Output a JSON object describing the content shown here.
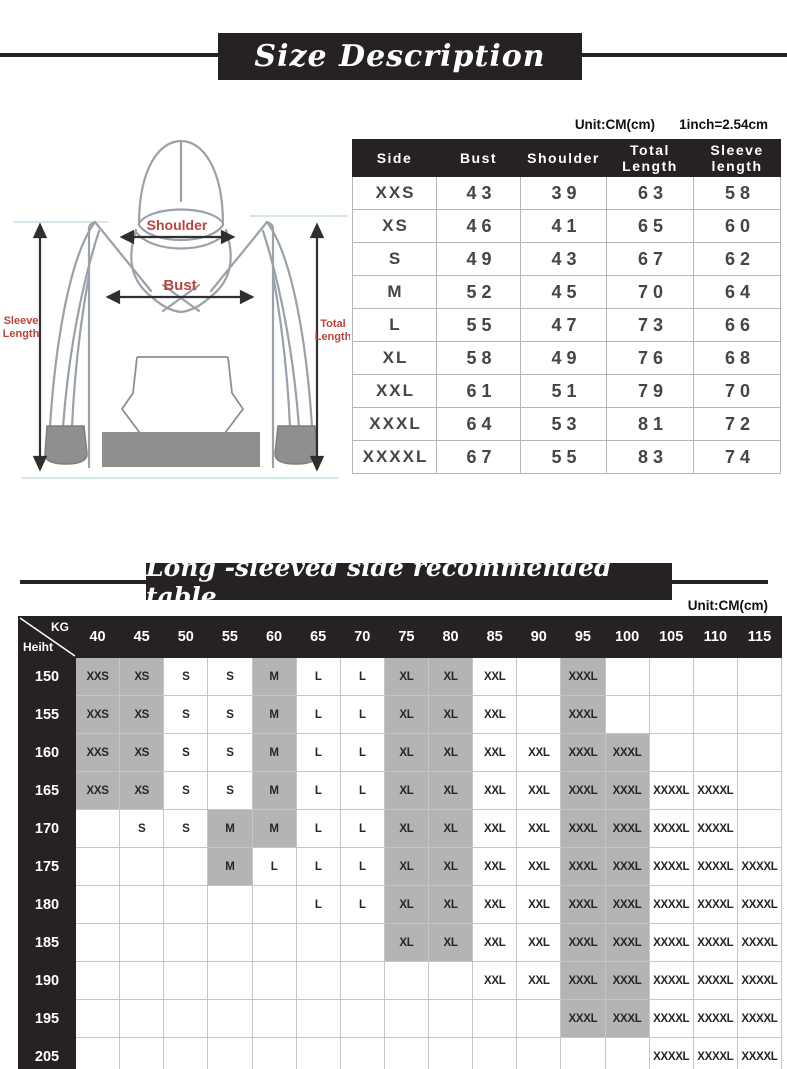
{
  "header": {
    "title": "Size Description"
  },
  "unit_note_top": {
    "unit": "Unit:CM(cm)",
    "conversion": "1inch=2.54cm"
  },
  "diagram": {
    "shoulder": "Shoulder",
    "bust": "Bust",
    "sleeve_line1": "Sleeve",
    "sleeve_line2": "Length",
    "total_line1": "Total",
    "total_line2": "Length"
  },
  "size_table": {
    "columns": [
      "Side",
      "Bust",
      "Shoulder",
      "Total\nLength",
      "Sleeve\nlength"
    ],
    "rows": [
      [
        "XXS",
        "43",
        "39",
        "63",
        "58"
      ],
      [
        "XS",
        "46",
        "41",
        "65",
        "60"
      ],
      [
        "S",
        "49",
        "43",
        "67",
        "62"
      ],
      [
        "M",
        "52",
        "45",
        "70",
        "64"
      ],
      [
        "L",
        "55",
        "47",
        "73",
        "66"
      ],
      [
        "XL",
        "58",
        "49",
        "76",
        "68"
      ],
      [
        "XXL",
        "61",
        "51",
        "79",
        "70"
      ],
      [
        "XXXL",
        "64",
        "53",
        "81",
        "72"
      ],
      [
        "XXXXL",
        "67",
        "55",
        "83",
        "74"
      ]
    ]
  },
  "recommend_header": {
    "title": "Long -sleeved side recommended table"
  },
  "unit_note_bottom": "Unit:CM(cm)",
  "recommend_table": {
    "corner_top": "KG",
    "corner_bottom": "Heiht",
    "weights": [
      "40",
      "45",
      "50",
      "55",
      "60",
      "65",
      "70",
      "75",
      "80",
      "85",
      "90",
      "95",
      "100",
      "105",
      "110",
      "115"
    ],
    "rows": [
      {
        "height": "150",
        "cells": [
          {
            "s": "XXS",
            "g": 1
          },
          {
            "s": "XS",
            "g": 1
          },
          {
            "s": "S"
          },
          {
            "s": "S"
          },
          {
            "s": "M",
            "g": 1
          },
          {
            "s": "L"
          },
          {
            "s": "L"
          },
          {
            "s": "XL",
            "g": 1
          },
          {
            "s": "XL",
            "g": 1
          },
          {
            "s": "XXL"
          },
          null,
          {
            "s": "XXXL",
            "g": 1
          },
          null,
          null,
          null,
          null
        ]
      },
      {
        "height": "155",
        "cells": [
          {
            "s": "XXS",
            "g": 1
          },
          {
            "s": "XS",
            "g": 1
          },
          {
            "s": "S"
          },
          {
            "s": "S"
          },
          {
            "s": "M",
            "g": 1
          },
          {
            "s": "L"
          },
          {
            "s": "L"
          },
          {
            "s": "XL",
            "g": 1
          },
          {
            "s": "XL",
            "g": 1
          },
          {
            "s": "XXL"
          },
          null,
          {
            "s": "XXXL",
            "g": 1
          },
          null,
          null,
          null,
          null
        ]
      },
      {
        "height": "160",
        "cells": [
          {
            "s": "XXS",
            "g": 1
          },
          {
            "s": "XS",
            "g": 1
          },
          {
            "s": "S"
          },
          {
            "s": "S"
          },
          {
            "s": "M",
            "g": 1
          },
          {
            "s": "L"
          },
          {
            "s": "L"
          },
          {
            "s": "XL",
            "g": 1
          },
          {
            "s": "XL",
            "g": 1
          },
          {
            "s": "XXL"
          },
          {
            "s": "XXL"
          },
          {
            "s": "XXXL",
            "g": 1
          },
          {
            "s": "XXXL",
            "g": 1
          },
          null,
          null,
          null
        ]
      },
      {
        "height": "165",
        "cells": [
          {
            "s": "XXS",
            "g": 1
          },
          {
            "s": "XS",
            "g": 1
          },
          {
            "s": "S"
          },
          {
            "s": "S"
          },
          {
            "s": "M",
            "g": 1
          },
          {
            "s": "L"
          },
          {
            "s": "L"
          },
          {
            "s": "XL",
            "g": 1
          },
          {
            "s": "XL",
            "g": 1
          },
          {
            "s": "XXL"
          },
          {
            "s": "XXL"
          },
          {
            "s": "XXXL",
            "g": 1
          },
          {
            "s": "XXXL",
            "g": 1
          },
          {
            "s": "XXXXL"
          },
          {
            "s": "XXXXL"
          },
          null
        ]
      },
      {
        "height": "170",
        "cells": [
          null,
          {
            "s": "S"
          },
          {
            "s": "S"
          },
          {
            "s": "M",
            "g": 1
          },
          {
            "s": "M",
            "g": 1
          },
          {
            "s": "L"
          },
          {
            "s": "L"
          },
          {
            "s": "XL",
            "g": 1
          },
          {
            "s": "XL",
            "g": 1
          },
          {
            "s": "XXL"
          },
          {
            "s": "XXL"
          },
          {
            "s": "XXXL",
            "g": 1
          },
          {
            "s": "XXXL",
            "g": 1
          },
          {
            "s": "XXXXL"
          },
          {
            "s": "XXXXL"
          },
          null
        ]
      },
      {
        "height": "175",
        "cells": [
          null,
          null,
          null,
          {
            "s": "M",
            "g": 1
          },
          {
            "s": "L"
          },
          {
            "s": "L"
          },
          {
            "s": "L"
          },
          {
            "s": "XL",
            "g": 1
          },
          {
            "s": "XL",
            "g": 1
          },
          {
            "s": "XXL"
          },
          {
            "s": "XXL"
          },
          {
            "s": "XXXL",
            "g": 1
          },
          {
            "s": "XXXL",
            "g": 1
          },
          {
            "s": "XXXXL"
          },
          {
            "s": "XXXXL"
          },
          {
            "s": "XXXXL"
          }
        ]
      },
      {
        "height": "180",
        "cells": [
          null,
          null,
          null,
          null,
          null,
          {
            "s": "L"
          },
          {
            "s": "L"
          },
          {
            "s": "XL",
            "g": 1
          },
          {
            "s": "XL",
            "g": 1
          },
          {
            "s": "XXL"
          },
          {
            "s": "XXL"
          },
          {
            "s": "XXXL",
            "g": 1
          },
          {
            "s": "XXXL",
            "g": 1
          },
          {
            "s": "XXXXL"
          },
          {
            "s": "XXXXL"
          },
          {
            "s": "XXXXL"
          }
        ]
      },
      {
        "height": "185",
        "cells": [
          null,
          null,
          null,
          null,
          null,
          null,
          null,
          {
            "s": "XL",
            "g": 1
          },
          {
            "s": "XL",
            "g": 1
          },
          {
            "s": "XXL"
          },
          {
            "s": "XXL"
          },
          {
            "s": "XXXL",
            "g": 1
          },
          {
            "s": "XXXL",
            "g": 1
          },
          {
            "s": "XXXXL"
          },
          {
            "s": "XXXXL"
          },
          {
            "s": "XXXXL"
          }
        ]
      },
      {
        "height": "190",
        "cells": [
          null,
          null,
          null,
          null,
          null,
          null,
          null,
          null,
          null,
          {
            "s": "XXL"
          },
          {
            "s": "XXL"
          },
          {
            "s": "XXXL",
            "g": 1
          },
          {
            "s": "XXXL",
            "g": 1
          },
          {
            "s": "XXXXL"
          },
          {
            "s": "XXXXL"
          },
          {
            "s": "XXXXL"
          }
        ]
      },
      {
        "height": "195",
        "cells": [
          null,
          null,
          null,
          null,
          null,
          null,
          null,
          null,
          null,
          null,
          null,
          {
            "s": "XXXL",
            "g": 1
          },
          {
            "s": "XXXL",
            "g": 1
          },
          {
            "s": "XXXXL"
          },
          {
            "s": "XXXXL"
          },
          {
            "s": "XXXXL"
          }
        ]
      },
      {
        "height": "205",
        "cells": [
          null,
          null,
          null,
          null,
          null,
          null,
          null,
          null,
          null,
          null,
          null,
          null,
          null,
          {
            "s": "XXXXL"
          },
          {
            "s": "XXXXL"
          },
          {
            "s": "XXXXL"
          }
        ]
      }
    ]
  },
  "colors": {
    "ink_black": "#262122",
    "highlight_gray": "#b4b4b4",
    "label_red": "#b8443e",
    "garment_gray": "#8f8f8f"
  }
}
